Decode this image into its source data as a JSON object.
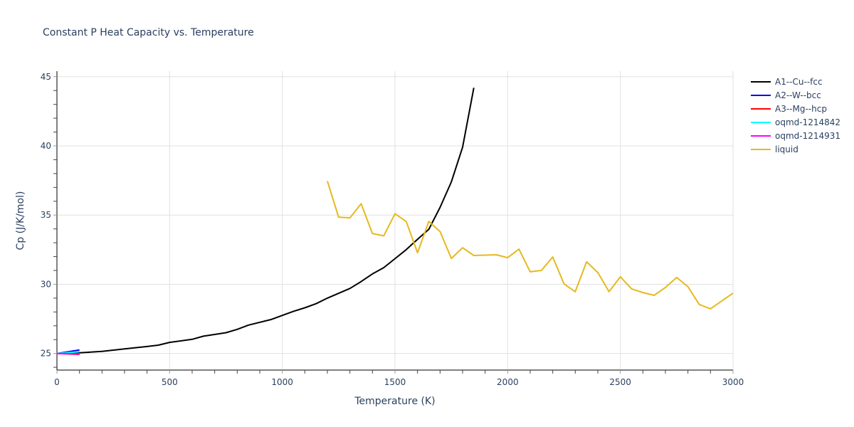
{
  "chart_data": {
    "type": "line",
    "title": "Constant P Heat Capacity vs. Temperature",
    "xlabel": "Temperature (K)",
    "ylabel": "Cp (J/K/mol)",
    "xlim": [
      0,
      3000
    ],
    "ylim": [
      23.8,
      45.4
    ],
    "xticks": [
      0,
      500,
      1000,
      1500,
      2000,
      2500,
      3000
    ],
    "xtick_labels": [
      "0",
      "500",
      "1000",
      "1500",
      "2000",
      "2500",
      "3000"
    ],
    "yticks": [
      25,
      30,
      35,
      40,
      45
    ],
    "ytick_labels": [
      "25",
      "30",
      "35",
      "40",
      "45"
    ],
    "grid": true,
    "legend_position": "top-right",
    "series": [
      {
        "name": "A1--Cu--fcc",
        "color": "#000000",
        "x": [
          0,
          100,
          200,
          300,
          400,
          450,
          500,
          600,
          650,
          750,
          800,
          850,
          950,
          1000,
          1050,
          1100,
          1150,
          1200,
          1300,
          1350,
          1400,
          1450,
          1500,
          1550,
          1600,
          1650,
          1700,
          1750,
          1800,
          1850
        ],
        "y": [
          25.0,
          25.05,
          25.15,
          25.33,
          25.5,
          25.6,
          25.8,
          26.02,
          26.25,
          26.5,
          26.74,
          27.05,
          27.45,
          27.75,
          28.05,
          28.3,
          28.6,
          29.0,
          29.7,
          30.2,
          30.75,
          31.2,
          31.85,
          32.5,
          33.25,
          33.97,
          35.55,
          37.4,
          39.9,
          44.2
        ]
      },
      {
        "name": "A2--W--bcc",
        "color": "#0000ff",
        "x": [
          0,
          100
        ],
        "y": [
          25.0,
          25.25
        ]
      },
      {
        "name": "A3--Mg--hcp",
        "color": "#ff0000",
        "x": [
          0,
          100
        ],
        "y": [
          25.0,
          24.93
        ]
      },
      {
        "name": "oqmd-1214842",
        "color": "#00ffff",
        "x": [
          0,
          100
        ],
        "y": [
          25.0,
          25.12
        ]
      },
      {
        "name": "oqmd-1214931",
        "color": "#ff00ff",
        "x": [
          0,
          100
        ],
        "y": [
          25.0,
          24.97
        ]
      },
      {
        "name": "liquid",
        "color": "#e6b91e",
        "x": [
          1200,
          1250,
          1300,
          1350,
          1400,
          1450,
          1500,
          1550,
          1600,
          1650,
          1700,
          1750,
          1800,
          1850,
          1950,
          2000,
          2050,
          2100,
          2150,
          2200,
          2250,
          2300,
          2350,
          2400,
          2450,
          2500,
          2550,
          2600,
          2650,
          2700,
          2750,
          2800,
          2850,
          2900,
          3000
        ],
        "y": [
          37.46,
          34.85,
          34.8,
          35.82,
          33.67,
          33.5,
          35.1,
          34.54,
          32.28,
          34.54,
          33.82,
          31.87,
          32.64,
          32.08,
          32.13,
          31.92,
          32.54,
          30.9,
          31.0,
          31.97,
          30.03,
          29.46,
          31.62,
          30.85,
          29.46,
          30.54,
          29.67,
          29.4,
          29.2,
          29.77,
          30.49,
          29.82,
          28.54,
          28.23,
          29.36
        ]
      }
    ]
  }
}
